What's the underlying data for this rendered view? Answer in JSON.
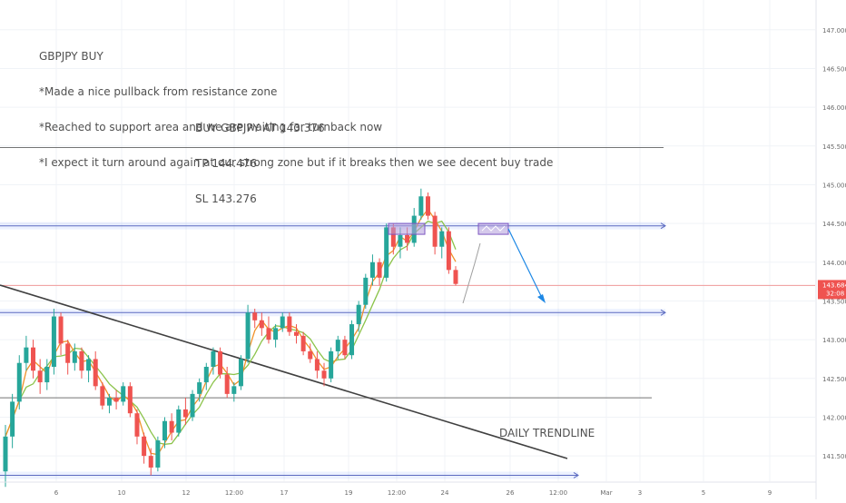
{
  "annotations": {
    "main_lines": [
      "GBPJPY BUY",
      "*Made a nice pullback from resistance zone",
      "*Reached to support area and we are waiting for turnback now",
      "*I expect it turn around again at our strong zone but if it breaks then we see decent buy trade"
    ],
    "trade_lines": [
      "BUY GBPJPY AT 143.376",
      "TP 144.476",
      "SL 143.276"
    ],
    "trendline_label": "DAILY TRENDLINE"
  },
  "price_badge": {
    "price": "143.684",
    "countdown": "32:08",
    "color": "#ef5350"
  },
  "colors": {
    "up": "#26a69a",
    "down": "#ef5350",
    "ma_fast": "#f0922b",
    "ma_slow": "#8bc34a",
    "zone": "#2962ff",
    "box": "#b39ddb",
    "arrow": "#1e88e5",
    "trendline": "#404040"
  },
  "chart_data": {
    "type": "candlestick",
    "symbol": "GBPJPY",
    "ylim": [
      141.15,
      147.15
    ],
    "y_ticks": [
      "147.000",
      "146.500",
      "146.000",
      "145.500",
      "145.000",
      "144.500",
      "144.000",
      "143.500",
      "143.000",
      "142.500",
      "142.000",
      "141.500"
    ],
    "x_ticks": [
      "6",
      "10",
      "12",
      "12:00",
      "17",
      "19",
      "12:00",
      "24",
      "26",
      "12:00",
      "Mar",
      "3",
      "5",
      "9"
    ],
    "horizontal_levels": [
      {
        "price": 145.48,
        "style": "line"
      },
      {
        "price": 144.47,
        "style": "zone"
      },
      {
        "price": 143.7,
        "style": "current-price"
      },
      {
        "price": 143.35,
        "style": "zone"
      },
      {
        "price": 142.25,
        "style": "line"
      },
      {
        "price": 141.25,
        "style": "zone"
      }
    ],
    "boxes": [
      {
        "price_high": 144.5,
        "price_low": 144.36
      },
      {
        "price_high": 144.5,
        "price_low": 144.36
      }
    ],
    "candles": [
      {
        "o": 141.3,
        "h": 141.9,
        "l": 141.1,
        "c": 141.75
      },
      {
        "o": 141.75,
        "h": 142.3,
        "l": 141.6,
        "c": 142.2
      },
      {
        "o": 142.2,
        "h": 142.8,
        "l": 142.1,
        "c": 142.7
      },
      {
        "o": 142.7,
        "h": 143.05,
        "l": 142.6,
        "c": 142.9
      },
      {
        "o": 142.9,
        "h": 143.0,
        "l": 142.5,
        "c": 142.6
      },
      {
        "o": 142.6,
        "h": 142.75,
        "l": 142.3,
        "c": 142.45
      },
      {
        "o": 142.45,
        "h": 142.75,
        "l": 142.35,
        "c": 142.65
      },
      {
        "o": 142.65,
        "h": 143.4,
        "l": 142.55,
        "c": 143.3
      },
      {
        "o": 143.3,
        "h": 143.35,
        "l": 142.8,
        "c": 142.95
      },
      {
        "o": 142.95,
        "h": 143.0,
        "l": 142.55,
        "c": 142.7
      },
      {
        "o": 142.7,
        "h": 142.95,
        "l": 142.6,
        "c": 142.85
      },
      {
        "o": 142.85,
        "h": 142.9,
        "l": 142.5,
        "c": 142.6
      },
      {
        "o": 142.6,
        "h": 142.8,
        "l": 142.45,
        "c": 142.75
      },
      {
        "o": 142.75,
        "h": 142.85,
        "l": 142.35,
        "c": 142.4
      },
      {
        "o": 142.4,
        "h": 142.45,
        "l": 142.1,
        "c": 142.15
      },
      {
        "o": 142.15,
        "h": 142.3,
        "l": 142.05,
        "c": 142.25
      },
      {
        "o": 142.25,
        "h": 142.35,
        "l": 142.1,
        "c": 142.2
      },
      {
        "o": 142.2,
        "h": 142.45,
        "l": 142.15,
        "c": 142.4
      },
      {
        "o": 142.4,
        "h": 142.45,
        "l": 142.0,
        "c": 142.05
      },
      {
        "o": 142.05,
        "h": 142.1,
        "l": 141.65,
        "c": 141.75
      },
      {
        "o": 141.75,
        "h": 141.8,
        "l": 141.4,
        "c": 141.5
      },
      {
        "o": 141.5,
        "h": 141.6,
        "l": 141.25,
        "c": 141.35
      },
      {
        "o": 141.35,
        "h": 141.75,
        "l": 141.3,
        "c": 141.7
      },
      {
        "o": 141.7,
        "h": 142.0,
        "l": 141.6,
        "c": 141.95
      },
      {
        "o": 141.95,
        "h": 142.05,
        "l": 141.7,
        "c": 141.8
      },
      {
        "o": 141.8,
        "h": 142.15,
        "l": 141.75,
        "c": 142.1
      },
      {
        "o": 142.1,
        "h": 142.25,
        "l": 141.9,
        "c": 142.0
      },
      {
        "o": 142.0,
        "h": 142.35,
        "l": 141.95,
        "c": 142.3
      },
      {
        "o": 142.3,
        "h": 142.5,
        "l": 142.2,
        "c": 142.45
      },
      {
        "o": 142.45,
        "h": 142.7,
        "l": 142.35,
        "c": 142.65
      },
      {
        "o": 142.65,
        "h": 142.9,
        "l": 142.55,
        "c": 142.85
      },
      {
        "o": 142.85,
        "h": 142.9,
        "l": 142.5,
        "c": 142.55
      },
      {
        "o": 142.55,
        "h": 142.65,
        "l": 142.25,
        "c": 142.3
      },
      {
        "o": 142.3,
        "h": 142.45,
        "l": 142.2,
        "c": 142.4
      },
      {
        "o": 142.4,
        "h": 142.8,
        "l": 142.35,
        "c": 142.75
      },
      {
        "o": 142.75,
        "h": 143.45,
        "l": 142.7,
        "c": 143.35
      },
      {
        "o": 143.35,
        "h": 143.4,
        "l": 143.15,
        "c": 143.25
      },
      {
        "o": 143.25,
        "h": 143.35,
        "l": 143.05,
        "c": 143.15
      },
      {
        "o": 143.15,
        "h": 143.3,
        "l": 142.95,
        "c": 143.0
      },
      {
        "o": 143.0,
        "h": 143.2,
        "l": 142.9,
        "c": 143.15
      },
      {
        "o": 143.15,
        "h": 143.35,
        "l": 143.1,
        "c": 143.3
      },
      {
        "o": 143.3,
        "h": 143.35,
        "l": 143.05,
        "c": 143.1
      },
      {
        "o": 143.1,
        "h": 143.2,
        "l": 142.95,
        "c": 143.05
      },
      {
        "o": 143.05,
        "h": 143.1,
        "l": 142.8,
        "c": 142.85
      },
      {
        "o": 142.85,
        "h": 142.95,
        "l": 142.7,
        "c": 142.75
      },
      {
        "o": 142.75,
        "h": 142.85,
        "l": 142.5,
        "c": 142.6
      },
      {
        "o": 142.6,
        "h": 142.7,
        "l": 142.4,
        "c": 142.5
      },
      {
        "o": 142.5,
        "h": 142.9,
        "l": 142.45,
        "c": 142.85
      },
      {
        "o": 142.85,
        "h": 143.05,
        "l": 142.75,
        "c": 143.0
      },
      {
        "o": 143.0,
        "h": 143.05,
        "l": 142.75,
        "c": 142.8
      },
      {
        "o": 142.8,
        "h": 143.25,
        "l": 142.75,
        "c": 143.2
      },
      {
        "o": 143.2,
        "h": 143.5,
        "l": 143.1,
        "c": 143.45
      },
      {
        "o": 143.45,
        "h": 143.85,
        "l": 143.4,
        "c": 143.8
      },
      {
        "o": 143.8,
        "h": 144.1,
        "l": 143.7,
        "c": 144.0
      },
      {
        "o": 144.0,
        "h": 144.05,
        "l": 143.7,
        "c": 143.8
      },
      {
        "o": 143.8,
        "h": 144.5,
        "l": 143.75,
        "c": 144.45
      },
      {
        "o": 144.45,
        "h": 144.5,
        "l": 144.1,
        "c": 144.2
      },
      {
        "o": 144.2,
        "h": 144.45,
        "l": 144.05,
        "c": 144.35
      },
      {
        "o": 144.35,
        "h": 144.45,
        "l": 144.15,
        "c": 144.25
      },
      {
        "o": 144.25,
        "h": 144.7,
        "l": 144.2,
        "c": 144.6
      },
      {
        "o": 144.6,
        "h": 144.95,
        "l": 144.55,
        "c": 144.85
      },
      {
        "o": 144.85,
        "h": 144.9,
        "l": 144.55,
        "c": 144.6
      },
      {
        "o": 144.6,
        "h": 144.65,
        "l": 144.1,
        "c": 144.2
      },
      {
        "o": 144.2,
        "h": 144.45,
        "l": 144.05,
        "c": 144.4
      },
      {
        "o": 144.4,
        "h": 144.45,
        "l": 143.85,
        "c": 143.9
      },
      {
        "o": 143.9,
        "h": 143.95,
        "l": 143.7,
        "c": 143.72
      }
    ]
  }
}
